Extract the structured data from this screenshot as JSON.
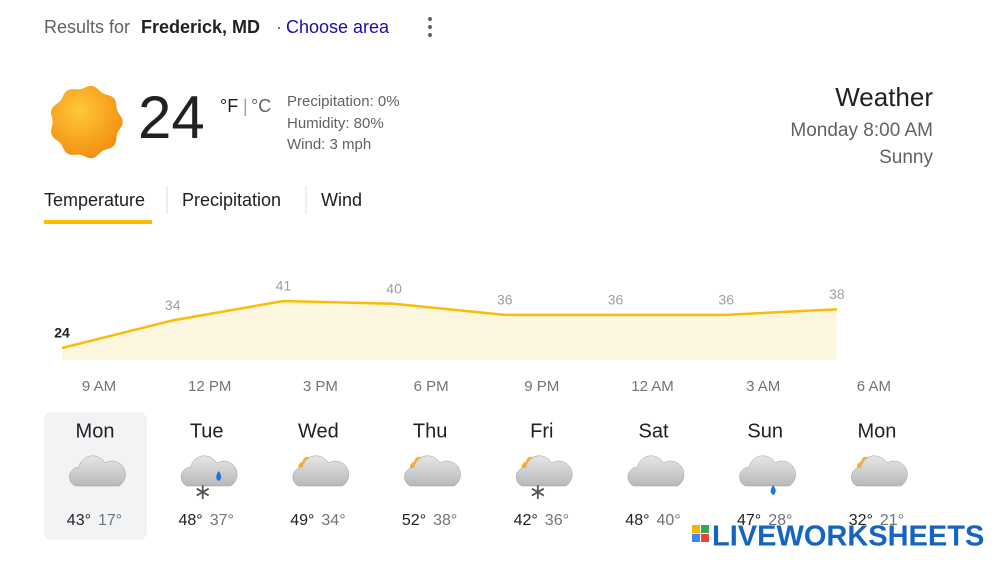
{
  "header": {
    "prefix": "Results for",
    "location": "Frederick, MD",
    "separator": "·",
    "link": "Choose area"
  },
  "current": {
    "temperature": 24,
    "unit_f": "°F",
    "unit_sep": "|",
    "unit_c": "°C",
    "precipitation": "Precipitation: 0%",
    "humidity": "Humidity: 80%",
    "wind": "Wind: 3 mph"
  },
  "summary": {
    "title": "Weather",
    "time": "Monday 8:00 AM",
    "condition": "Sunny"
  },
  "tabs": [
    "Temperature",
    "Precipitation",
    "Wind"
  ],
  "chart_data": {
    "type": "line",
    "categories": [
      "9 AM",
      "12 PM",
      "3 PM",
      "6 PM",
      "9 PM",
      "12 AM",
      "3 AM",
      "6 AM"
    ],
    "values": [
      24,
      34,
      41,
      40,
      36,
      36,
      36,
      38
    ],
    "color": "#fbbc04"
  },
  "forecast": [
    {
      "day": "Mon",
      "high": "43°",
      "low": "17°"
    },
    {
      "day": "Tue",
      "high": "48°",
      "low": "37°"
    },
    {
      "day": "Wed",
      "high": "49°",
      "low": "34°"
    },
    {
      "day": "Thu",
      "high": "52°",
      "low": "38°"
    },
    {
      "day": "Fri",
      "high": "42°",
      "low": "36°"
    },
    {
      "day": "Sat",
      "high": "48°",
      "low": "40°"
    },
    {
      "day": "Sun",
      "high": "47°",
      "low": "28°"
    },
    {
      "day": "Mon",
      "high": "32°",
      "low": "21°"
    }
  ],
  "watermark": "LIVEWORKSHEETS"
}
